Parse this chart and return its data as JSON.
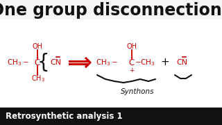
{
  "title": "One group disconnections",
  "title_fontsize": 17,
  "title_fontweight": "bold",
  "bg_color": "#f5f5f5",
  "white_area": "#ffffff",
  "chem_color": "#cc0000",
  "black_color": "#111111",
  "footer_text": "Retrosynthetic analysis 1",
  "footer_bg": "#111111",
  "footer_color": "#ffffff",
  "footer_fontsize": 8.5,
  "synthons_text": "Synthons"
}
